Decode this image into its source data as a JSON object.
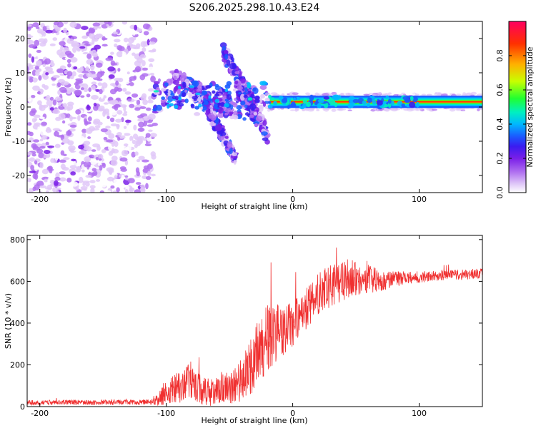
{
  "title": "S206.2025.298.10.43.E24",
  "chart_data": [
    {
      "type": "heatmap",
      "title": "S206.2025.298.10.43.E24",
      "xlabel": "Height of straight line (km)",
      "ylabel": "Frequency (Hz)",
      "xlim": [
        -210,
        150
      ],
      "ylim": [
        -25,
        25
      ],
      "x_ticks": [
        -200,
        -100,
        0,
        100
      ],
      "y_ticks": [
        -20,
        -10,
        0,
        10,
        20
      ],
      "colorbar": {
        "label": "Normalized spectral amplitude",
        "range": [
          0.0,
          1.0
        ],
        "ticks": [
          0.0,
          0.2,
          0.4,
          0.6,
          0.8
        ],
        "colors": [
          "#ffffff",
          "#e0c8f8",
          "#b070f0",
          "#7a1fe8",
          "#3a1cf0",
          "#1a5cff",
          "#00b8ff",
          "#00f0c0",
          "#20ff30",
          "#c8ff00",
          "#ffb000",
          "#ff3000",
          "#ff0060"
        ]
      },
      "noise_region_x": [
        -210,
        -113
      ],
      "spectral_line": {
        "x": [
          -20,
          150
        ],
        "frequency": 1.5,
        "peak_amplitude": 0.95
      }
    },
    {
      "type": "line",
      "xlabel": "Height of straight line (km)",
      "ylabel": "SNR (10 * v/v)",
      "xlim": [
        -210,
        150
      ],
      "ylim": [
        0,
        820
      ],
      "x_ticks": [
        -200,
        -100,
        0,
        100
      ],
      "y_ticks": [
        0,
        200,
        400,
        600,
        800
      ],
      "color": "#f03030",
      "x": [
        -210,
        -200,
        -180,
        -160,
        -140,
        -120,
        -110,
        -105,
        -100,
        -95,
        -90,
        -85,
        -80,
        -75,
        -70,
        -65,
        -60,
        -55,
        -50,
        -45,
        -40,
        -35,
        -30,
        -25,
        -20,
        -15,
        -10,
        -5,
        0,
        5,
        10,
        15,
        20,
        25,
        30,
        35,
        40,
        45,
        50,
        55,
        60,
        65,
        70,
        75,
        80,
        85,
        90,
        95,
        100,
        110,
        120,
        130,
        140,
        150
      ],
      "values": [
        20,
        18,
        22,
        19,
        21,
        20,
        25,
        40,
        60,
        80,
        95,
        110,
        120,
        90,
        75,
        70,
        80,
        95,
        85,
        100,
        130,
        170,
        220,
        290,
        330,
        350,
        360,
        380,
        400,
        430,
        460,
        500,
        540,
        560,
        575,
        590,
        600,
        610,
        620,
        615,
        610,
        605,
        600,
        605,
        610,
        615,
        620,
        620,
        620,
        625,
        630,
        630,
        635,
        640
      ],
      "spread": [
        12,
        12,
        12,
        12,
        12,
        12,
        15,
        40,
        60,
        70,
        80,
        90,
        100,
        80,
        70,
        70,
        70,
        80,
        80,
        90,
        110,
        130,
        150,
        170,
        160,
        150,
        130,
        120,
        110,
        100,
        100,
        100,
        100,
        110,
        110,
        110,
        100,
        100,
        90,
        80,
        70,
        60,
        50,
        45,
        40,
        35,
        30,
        30,
        30,
        25,
        25,
        25,
        25,
        25
      ]
    }
  ]
}
